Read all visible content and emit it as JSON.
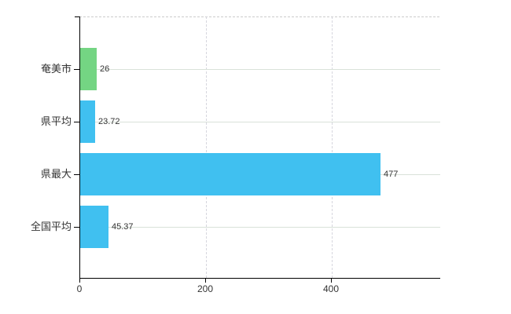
{
  "chart_data": {
    "type": "bar",
    "orientation": "horizontal",
    "title": "",
    "categories": [
      "奄美市",
      "県平均",
      "県最大",
      "全国平均"
    ],
    "values": [
      26,
      23.72,
      477,
      45.37
    ],
    "value_labels": [
      "26",
      "23.72",
      "477",
      "45.37"
    ],
    "series": [
      {
        "name": "",
        "values": [
          26,
          23.72,
          477,
          45.37
        ]
      }
    ],
    "bar_colors": [
      "#74d583",
      "#40c0f0",
      "#40c0f0",
      "#40c0f0"
    ],
    "xlabel": "",
    "ylabel": "",
    "xticks": [
      0,
      200,
      400
    ],
    "xtick_labels": [
      "0",
      "200",
      "400"
    ],
    "xlim": [
      0,
      572.5
    ],
    "grid": true,
    "legend_position": "none"
  },
  "colors": {
    "background": "#ffffff",
    "axis": "#000000",
    "grid_horizontal": "#d9e2d9",
    "grid_vertical": "#d6d6de",
    "top_border": "#cccccc",
    "bar_green": "#74d583",
    "bar_blue": "#40c0f0",
    "text": "#333333"
  }
}
